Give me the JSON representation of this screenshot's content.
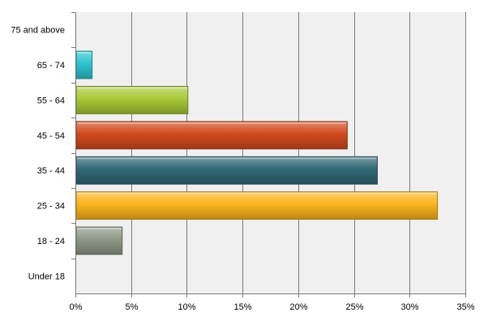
{
  "chart_data": {
    "type": "bar",
    "orientation": "horizontal",
    "categories": [
      "Under 18",
      "18 - 24",
      "25 - 34",
      "35 - 44",
      "45 - 54",
      "55 - 64",
      "65 - 74",
      "75 and above"
    ],
    "values": [
      0,
      4.2,
      32.5,
      27.1,
      24.4,
      10.1,
      1.5,
      0
    ],
    "value_unit": "%",
    "xlim": [
      0,
      35
    ],
    "xticks": [
      "0%",
      "5%",
      "10%",
      "15%",
      "20%",
      "25%",
      "30%",
      "35%"
    ],
    "grid": true,
    "legend": "none",
    "colors": [
      "#a0a0a0",
      "#8f9888",
      "#fbb51c",
      "#326877",
      "#d24b1e",
      "#a9c838",
      "#2ec4cf",
      "#a0a0a0"
    ],
    "plot_background": "#f0f0f0"
  }
}
